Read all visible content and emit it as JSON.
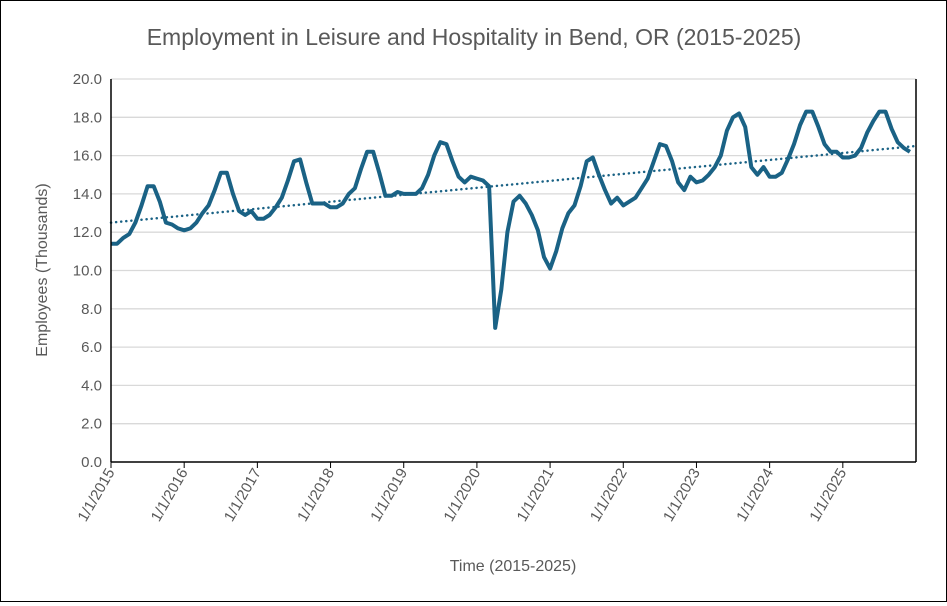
{
  "chart_data": {
    "type": "line",
    "title": "Employment in Leisure and Hospitality in Bend, OR (2015-2025)",
    "xlabel": "Time (2015-2025)",
    "ylabel": "Employees (Thousands)",
    "ylim": [
      0,
      20
    ],
    "yticks": [
      "0.0",
      "2.0",
      "4.0",
      "6.0",
      "8.0",
      "10.0",
      "12.0",
      "14.0",
      "16.0",
      "18.0",
      "20.0"
    ],
    "xticks": [
      "1/1/2015",
      "1/1/2016",
      "1/1/2017",
      "1/1/2018",
      "1/1/2019",
      "1/1/2020",
      "1/1/2021",
      "1/1/2022",
      "1/1/2023",
      "1/1/2024",
      "1/1/2025"
    ],
    "x_start": "2015-01",
    "x_range_months": 132,
    "grid": true,
    "series": [
      {
        "name": "Employees (Thousands)",
        "color": "#1a6285",
        "frequency": "monthly",
        "values": [
          11.4,
          11.4,
          11.7,
          11.9,
          12.5,
          13.4,
          14.4,
          14.4,
          13.6,
          12.5,
          12.4,
          12.2,
          12.1,
          12.2,
          12.5,
          13.0,
          13.4,
          14.2,
          15.1,
          15.1,
          14.0,
          13.1,
          12.9,
          13.1,
          12.7,
          12.7,
          12.9,
          13.3,
          13.8,
          14.7,
          15.7,
          15.8,
          14.6,
          13.5,
          13.5,
          13.5,
          13.3,
          13.3,
          13.5,
          14.0,
          14.3,
          15.3,
          16.2,
          16.2,
          15.1,
          13.9,
          13.9,
          14.1,
          14.0,
          14.0,
          14.0,
          14.3,
          15.0,
          16.0,
          16.7,
          16.6,
          15.7,
          14.9,
          14.6,
          14.9,
          14.8,
          14.7,
          14.4,
          7.0,
          9.0,
          12.0,
          13.6,
          13.9,
          13.5,
          12.9,
          12.1,
          10.7,
          10.1,
          11.0,
          12.2,
          13.0,
          13.4,
          14.4,
          15.7,
          15.9,
          15.0,
          14.2,
          13.5,
          13.8,
          13.4,
          13.6,
          13.8,
          14.3,
          14.8,
          15.7,
          16.6,
          16.5,
          15.7,
          14.6,
          14.2,
          14.9,
          14.6,
          14.7,
          15.0,
          15.4,
          16.0,
          17.3,
          18.0,
          18.2,
          17.5,
          15.4,
          15.0,
          15.4,
          14.9,
          14.9,
          15.1,
          15.8,
          16.6,
          17.6,
          18.3,
          18.3,
          17.5,
          16.6,
          16.2,
          16.2,
          15.9,
          15.9,
          16.0,
          16.4,
          17.2,
          17.8,
          18.3,
          18.3,
          17.4,
          16.7,
          16.4,
          16.2
        ]
      }
    ],
    "trendline": {
      "type": "linear",
      "style": "dotted",
      "color": "#1a6285",
      "start": 12.5,
      "end": 16.5
    }
  }
}
